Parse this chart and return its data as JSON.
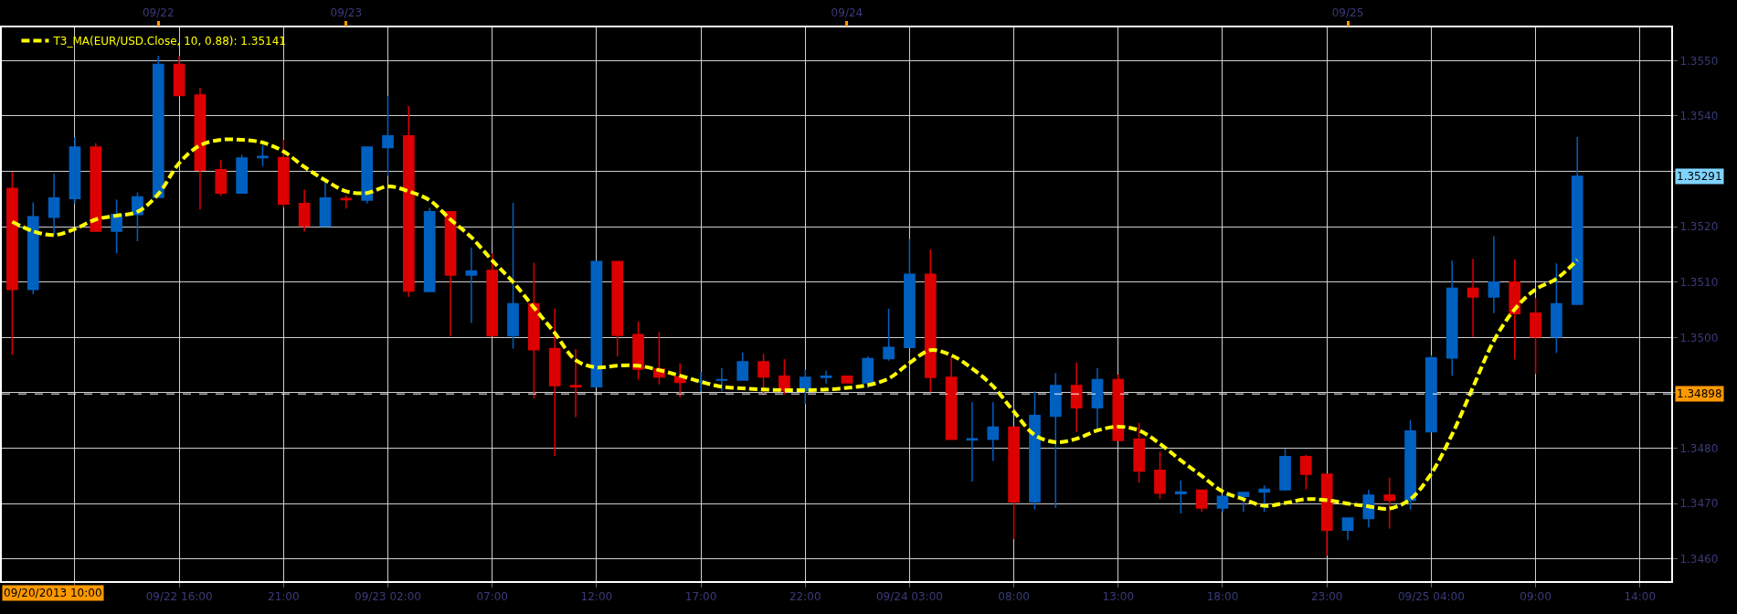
{
  "chart_data": {
    "type": "candlestick",
    "categories": [
      null,
      null,
      null,
      null,
      null,
      null,
      null,
      null,
      "09/22 16:00",
      null,
      null,
      null,
      null,
      "21:00",
      null,
      null,
      null,
      null,
      "09/23 02:00",
      null,
      null,
      null,
      null,
      "07:00",
      null,
      null,
      null,
      null,
      "12:00",
      null,
      null,
      null,
      null,
      "17:00",
      null,
      null,
      null,
      null,
      "22:00",
      null,
      null,
      null,
      null,
      "09/24 03:00",
      null,
      null,
      null,
      null,
      "08:00",
      null,
      null,
      null,
      null,
      "13:00",
      null,
      null,
      null,
      null,
      "18:00",
      null,
      null,
      null,
      null,
      "23:00",
      null,
      null,
      null,
      null,
      "09/25 04:00",
      null,
      null,
      null,
      null,
      "09:00",
      null,
      null,
      null,
      null,
      "14:00",
      null
    ],
    "ohlc": [
      [
        1.35269,
        1.35299,
        1.34969,
        1.35087
      ],
      [
        1.35087,
        1.35244,
        1.35078,
        1.35218
      ],
      [
        1.35217,
        1.35296,
        1.35185,
        1.35252
      ],
      [
        1.35251,
        1.35362,
        1.35242,
        1.35344
      ],
      [
        1.35344,
        1.35351,
        1.35192,
        1.35192
      ],
      [
        1.35192,
        1.35249,
        1.35152,
        1.35222
      ],
      [
        1.35222,
        1.35262,
        1.35174,
        1.35254
      ],
      [
        1.35253,
        1.35509,
        1.35253,
        1.35493
      ],
      [
        1.35493,
        1.35509,
        1.35437,
        1.35437
      ],
      [
        1.35438,
        1.35451,
        1.35231,
        1.35302
      ],
      [
        1.35303,
        1.35321,
        1.35256,
        1.35261
      ],
      [
        1.35261,
        1.3533,
        1.35261,
        1.35324
      ],
      [
        1.35325,
        1.35347,
        1.35309,
        1.35327
      ],
      [
        1.35325,
        1.35357,
        1.35235,
        1.35241
      ],
      [
        1.35242,
        1.35267,
        1.35191,
        1.35201
      ],
      [
        1.35201,
        1.35282,
        1.352,
        1.35252
      ],
      [
        1.35251,
        1.35256,
        1.35233,
        1.35249
      ],
      [
        1.35248,
        1.35344,
        1.35242,
        1.35344
      ],
      [
        1.35343,
        1.35436,
        1.35292,
        1.35364
      ],
      [
        1.35364,
        1.35418,
        1.35073,
        1.35084
      ],
      [
        1.35083,
        1.35234,
        1.35083,
        1.35227
      ],
      [
        1.35227,
        1.35227,
        1.35002,
        1.35113
      ],
      [
        1.35113,
        1.35162,
        1.35026,
        1.3512
      ],
      [
        1.35121,
        1.35152,
        1.35003,
        1.35003
      ],
      [
        1.35003,
        1.35243,
        1.3498,
        1.35061
      ],
      [
        1.35061,
        1.35135,
        1.3489,
        1.34978
      ],
      [
        1.3498,
        1.35052,
        1.34786,
        1.34913
      ],
      [
        1.34913,
        1.34979,
        1.34856,
        1.34911
      ],
      [
        1.34911,
        1.35137,
        1.34911,
        1.35137
      ],
      [
        1.35137,
        1.35137,
        1.34966,
        1.35004
      ],
      [
        1.35005,
        1.35029,
        1.34924,
        1.34943
      ],
      [
        1.34943,
        1.3501,
        1.34915,
        1.34929
      ],
      [
        1.34929,
        1.34953,
        1.34892,
        1.34919
      ],
      [
        1.3492,
        1.34938,
        1.34903,
        1.34921
      ],
      [
        1.34923,
        1.34945,
        1.34903,
        1.34924
      ],
      [
        1.34923,
        1.34973,
        1.34923,
        1.34956
      ],
      [
        1.34956,
        1.3497,
        1.34896,
        1.34929
      ],
      [
        1.3493,
        1.34961,
        1.34897,
        1.34904
      ],
      [
        1.34904,
        1.34942,
        1.3488,
        1.34928
      ],
      [
        1.34928,
        1.3494,
        1.34917,
        1.3493
      ],
      [
        1.3493,
        1.3493,
        1.34918,
        1.34918
      ],
      [
        1.34918,
        1.34966,
        1.34908,
        1.34962
      ],
      [
        1.34962,
        1.35052,
        1.34958,
        1.34982
      ],
      [
        1.34982,
        1.35178,
        1.34982,
        1.35114
      ],
      [
        1.35114,
        1.35159,
        1.34901,
        1.34928
      ],
      [
        1.34928,
        1.34965,
        1.34816,
        1.34816
      ],
      [
        1.34815,
        1.34883,
        1.3474,
        1.34817
      ],
      [
        1.34816,
        1.34883,
        1.34777,
        1.34838
      ],
      [
        1.34838,
        1.34838,
        1.34636,
        1.34703
      ],
      [
        1.34703,
        1.34903,
        1.34689,
        1.34859
      ],
      [
        1.34858,
        1.34936,
        1.34692,
        1.34913
      ],
      [
        1.34913,
        1.34955,
        1.34829,
        1.34873
      ],
      [
        1.34873,
        1.34945,
        1.34832,
        1.34924
      ],
      [
        1.34924,
        1.34933,
        1.34814,
        1.34814
      ],
      [
        1.34816,
        1.34846,
        1.34738,
        1.34759
      ],
      [
        1.3476,
        1.34794,
        1.34708,
        1.34719
      ],
      [
        1.34718,
        1.34742,
        1.34682,
        1.34721
      ],
      [
        1.34724,
        1.34724,
        1.34685,
        1.34692
      ],
      [
        1.34692,
        1.34713,
        1.34684,
        1.34713
      ],
      [
        1.34713,
        1.3472,
        1.34685,
        1.3472
      ],
      [
        1.34721,
        1.34733,
        1.34685,
        1.34726
      ],
      [
        1.34725,
        1.34799,
        1.34723,
        1.34785
      ],
      [
        1.34785,
        1.34788,
        1.34726,
        1.34753
      ],
      [
        1.34753,
        1.34753,
        1.34606,
        1.34652
      ],
      [
        1.34652,
        1.34674,
        1.34634,
        1.34674
      ],
      [
        1.34673,
        1.34725,
        1.34657,
        1.34715
      ],
      [
        1.34715,
        1.34747,
        1.34655,
        1.34706
      ],
      [
        1.34706,
        1.34851,
        1.34689,
        1.34831
      ],
      [
        1.3483,
        1.34968,
        1.3483,
        1.34963
      ],
      [
        1.34963,
        1.35139,
        1.34931,
        1.35089
      ],
      [
        1.35089,
        1.35142,
        1.35001,
        1.35073
      ],
      [
        1.35073,
        1.35183,
        1.35044,
        1.351
      ],
      [
        1.351,
        1.35141,
        1.3496,
        1.35043
      ],
      [
        1.35044,
        1.35071,
        1.34934,
        1.35001
      ],
      [
        1.35001,
        1.35134,
        1.34972,
        1.35061
      ],
      [
        1.3506,
        1.35362,
        1.3506,
        1.35291
      ],
      null,
      null,
      null,
      null
    ],
    "colors": [
      "#dd0000",
      "#0060c0",
      "#0060c0",
      "#0060c0",
      "#dd0000",
      "#0060c0",
      "#0060c0",
      "#0060c0",
      "#dd0000",
      "#dd0000",
      "#dd0000",
      "#0060c0",
      "#0060c0",
      "#dd0000",
      "#dd0000",
      "#0060c0",
      "#dd0000",
      "#0060c0",
      "#0060c0",
      "#dd0000",
      "#0060c0",
      "#dd0000",
      "#0060c0",
      "#dd0000",
      "#0060c0",
      "#dd0000",
      "#dd0000",
      "#dd0000",
      "#0060c0",
      "#dd0000",
      "#dd0000",
      "#dd0000",
      "#dd0000",
      "#0060c0",
      "#0060c0",
      "#0060c0",
      "#dd0000",
      "#dd0000",
      "#0060c0",
      "#0060c0",
      "#dd0000",
      "#0060c0",
      "#0060c0",
      "#0060c0",
      "#dd0000",
      "#dd0000",
      "#0060c0",
      "#0060c0",
      "#dd0000",
      "#0060c0",
      "#0060c0",
      "#dd0000",
      "#0060c0",
      "#dd0000",
      "#dd0000",
      "#dd0000",
      "#0060c0",
      "#dd0000",
      "#0060c0",
      "#0060c0",
      "#0060c0",
      "#0060c0",
      "#dd0000",
      "#dd0000",
      "#0060c0",
      "#0060c0",
      "#dd0000",
      "#0060c0",
      "#0060c0",
      "#0060c0",
      "#dd0000",
      "#0060c0",
      "#dd0000",
      "#dd0000",
      "#0060c0",
      "#0060c0",
      null,
      null,
      null,
      null
    ],
    "series": [
      {
        "name": "T3_MA(EUR/USD.Close, 10, 0.88): 1.35141",
        "type": "line",
        "color": "#ffff00",
        "values": [
          1.35209,
          1.35192,
          1.35185,
          1.35196,
          1.35213,
          1.3522,
          1.35227,
          1.35259,
          1.35315,
          1.35347,
          1.35357,
          1.35357,
          1.35352,
          1.35336,
          1.35308,
          1.35284,
          1.35264,
          1.35261,
          1.35273,
          1.35264,
          1.35248,
          1.35213,
          1.35181,
          1.35139,
          1.351,
          1.35054,
          1.35008,
          1.34959,
          1.34946,
          1.34949,
          1.34949,
          1.34941,
          1.34931,
          1.3492,
          1.34911,
          1.34908,
          1.34906,
          1.34905,
          1.34905,
          1.34906,
          1.34909,
          1.34914,
          1.34926,
          1.34954,
          1.34977,
          1.34968,
          1.34944,
          1.34912,
          1.34866,
          1.34824,
          1.34811,
          1.34817,
          1.34832,
          1.34839,
          1.34832,
          1.34808,
          1.34778,
          1.3475,
          1.34722,
          1.34708,
          1.34696,
          1.34701,
          1.34708,
          1.34706,
          1.347,
          1.34695,
          1.34691,
          1.34708,
          1.34754,
          1.34825,
          1.3491,
          1.34994,
          1.35051,
          1.35087,
          1.35106,
          1.3514,
          null,
          null,
          null,
          null
        ]
      }
    ],
    "line_style": "dashed",
    "x2lim": [
      "2013-09-22T07:30",
      "2013-09-25T15:30"
    ],
    "x2ticks": [
      {
        "value": "2013-09-22T15:00",
        "label": "09/22"
      },
      {
        "value": "2013-09-23T00:00",
        "label": "09/23"
      },
      {
        "value": "2013-09-24T00:00",
        "label": "09/24"
      },
      {
        "value": "2013-09-25T00:00",
        "label": "09/25"
      }
    ],
    "ylim": [
      1.3456,
      1.3556
    ],
    "yticks": [
      {
        "value": 1.346,
        "label": "1.3460"
      },
      {
        "value": 1.347,
        "label": "1.3470"
      },
      {
        "value": 1.348,
        "label": "1.3480"
      },
      {
        "value": 1.349,
        "label": null
      },
      {
        "value": 1.35,
        "label": "1.3500"
      },
      {
        "value": 1.351,
        "label": "1.3510"
      },
      {
        "value": 1.352,
        "label": "1.3520"
      },
      {
        "value": 1.353,
        "label": null
      },
      {
        "value": 1.354,
        "label": "1.3540"
      },
      {
        "value": 1.355,
        "label": "1.3550"
      }
    ],
    "grid": true,
    "legend": "top left",
    "ref_lines": [
      {
        "axis": "y",
        "value": 1.34898,
        "label": "1.34898",
        "color": "#ffffff",
        "line_style": "dashed"
      }
    ],
    "annotations": [
      "09/20/2013 10:00",
      "1.35291"
    ]
  }
}
